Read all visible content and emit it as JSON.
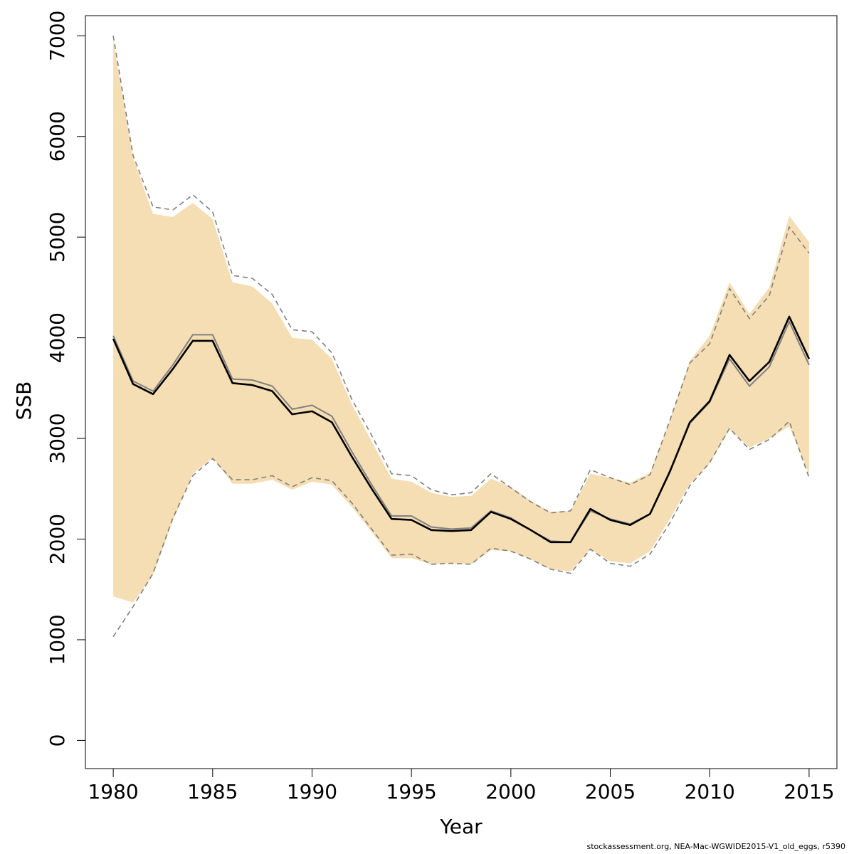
{
  "chart_data": {
    "type": "line",
    "xlabel": "Year",
    "ylabel": "SSB",
    "xlim": [
      1978.6,
      2016.4
    ],
    "ylim": [
      -280,
      7200
    ],
    "x_ticks": [
      1980,
      1985,
      1990,
      1995,
      2000,
      2005,
      2010,
      2015
    ],
    "y_ticks": [
      0,
      1000,
      2000,
      3000,
      4000,
      5000,
      6000,
      7000
    ],
    "grid": false,
    "x": [
      1980,
      1981,
      1982,
      1983,
      1984,
      1985,
      1986,
      1987,
      1988,
      1989,
      1990,
      1991,
      1992,
      1993,
      1994,
      1995,
      1996,
      1997,
      1998,
      1999,
      2000,
      2001,
      2002,
      2003,
      2004,
      2005,
      2006,
      2007,
      2008,
      2009,
      2010,
      2011,
      2012,
      2013,
      2014,
      2015
    ],
    "series": [
      {
        "role": "band",
        "color": "#f5deb3",
        "lower": [
          1430,
          1370,
          1640,
          2180,
          2650,
          2810,
          2550,
          2550,
          2590,
          2490,
          2570,
          2540,
          2320,
          2070,
          1810,
          1810,
          1750,
          1760,
          1750,
          1890,
          1880,
          1800,
          1700,
          1680,
          1900,
          1780,
          1760,
          1880,
          2200,
          2550,
          2750,
          3090,
          2910,
          3000,
          3120,
          2640
        ],
        "upper": [
          6950,
          5790,
          5230,
          5200,
          5340,
          5180,
          4550,
          4510,
          4340,
          4000,
          3980,
          3790,
          3340,
          2970,
          2600,
          2570,
          2460,
          2420,
          2430,
          2600,
          2520,
          2380,
          2270,
          2280,
          2650,
          2610,
          2560,
          2660,
          3180,
          3770,
          4020,
          4550,
          4240,
          4500,
          5210,
          4950
        ]
      },
      {
        "role": "dashed-lower",
        "color": "#808080",
        "values": [
          1030,
          1330,
          1660,
          2210,
          2630,
          2800,
          2590,
          2590,
          2630,
          2520,
          2610,
          2580,
          2360,
          2100,
          1840,
          1850,
          1750,
          1760,
          1750,
          1910,
          1880,
          1800,
          1700,
          1660,
          1900,
          1760,
          1730,
          1850,
          2160,
          2530,
          2760,
          3100,
          2890,
          2990,
          3170,
          2610
        ]
      },
      {
        "role": "dashed-upper",
        "color": "#808080",
        "values": [
          7000,
          5810,
          5300,
          5270,
          5420,
          5250,
          4620,
          4590,
          4430,
          4080,
          4060,
          3850,
          3390,
          3030,
          2650,
          2630,
          2490,
          2440,
          2460,
          2650,
          2510,
          2370,
          2260,
          2280,
          2690,
          2610,
          2540,
          2640,
          3180,
          3750,
          3940,
          4490,
          4190,
          4420,
          5100,
          4840
        ]
      },
      {
        "role": "estimate-grey",
        "color": "#808080",
        "values": [
          4020,
          3570,
          3470,
          3730,
          4030,
          4030,
          3590,
          3580,
          3520,
          3290,
          3330,
          3220,
          2870,
          2540,
          2230,
          2230,
          2120,
          2100,
          2110,
          2280,
          2210,
          2090,
          1980,
          1970,
          2280,
          2200,
          2150,
          2250,
          2680,
          3150,
          3360,
          3790,
          3520,
          3710,
          4160,
          3730
        ]
      },
      {
        "role": "estimate",
        "color": "#000000",
        "values": [
          3990,
          3540,
          3440,
          3690,
          3970,
          3970,
          3550,
          3530,
          3470,
          3240,
          3270,
          3160,
          2820,
          2500,
          2200,
          2190,
          2090,
          2080,
          2090,
          2270,
          2200,
          2090,
          1970,
          1970,
          2300,
          2190,
          2140,
          2250,
          2670,
          3160,
          3370,
          3830,
          3570,
          3760,
          4210,
          3790
        ]
      }
    ]
  },
  "footnote": "stockassessment.org, NEA-Mac-WGWIDE2015-V1_old_eggs, r5390"
}
